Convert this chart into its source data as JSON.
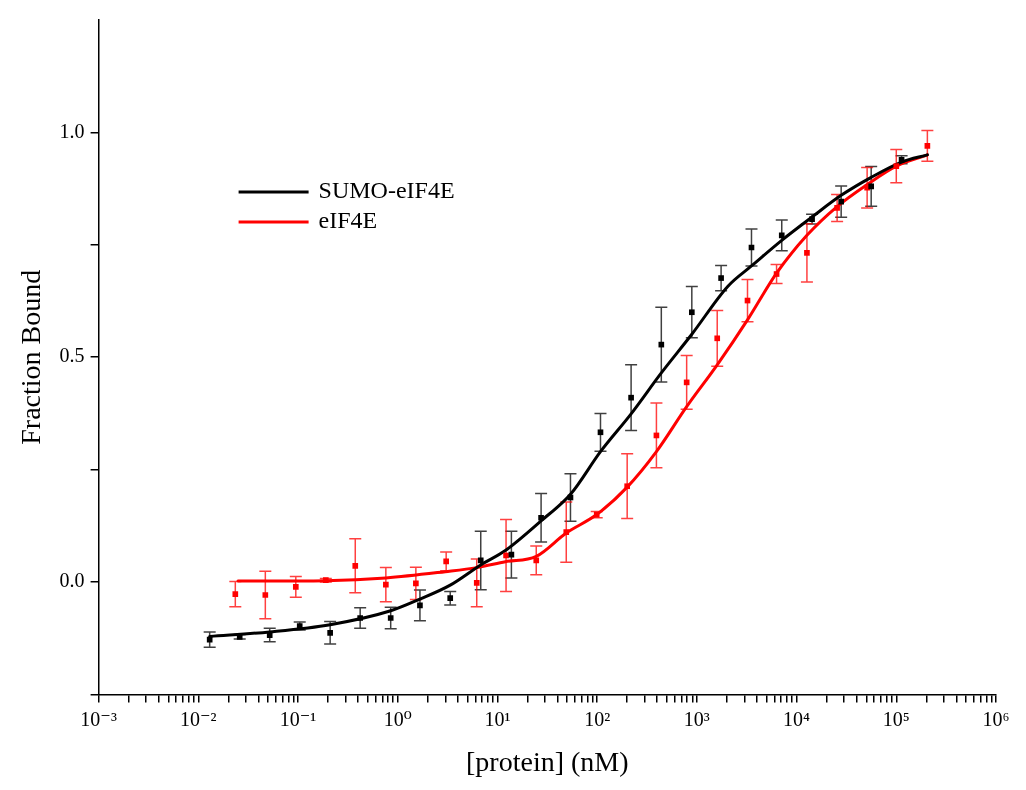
{
  "chart_data": {
    "type": "scatter",
    "xlabel": "[protein] (nM)",
    "ylabel": "Fraction Bound",
    "log": "x",
    "legend": "top left",
    "xlim": [
      0.001,
      1000000
    ],
    "ylim": [
      -0.25,
      1.25
    ],
    "xticks": [
      {
        "value": 0.001,
        "label": "10⁻³"
      },
      {
        "value": 0.002,
        "label": null
      },
      {
        "value": 0.003,
        "label": null
      },
      {
        "value": 0.004,
        "label": null
      },
      {
        "value": 0.005,
        "label": null
      },
      {
        "value": 0.006,
        "label": null
      },
      {
        "value": 0.007,
        "label": null
      },
      {
        "value": 0.008,
        "label": null
      },
      {
        "value": 0.009,
        "label": null
      },
      {
        "value": 0.01,
        "label": "10⁻²"
      },
      {
        "value": 0.02,
        "label": null
      },
      {
        "value": 0.03,
        "label": null
      },
      {
        "value": 0.04,
        "label": null
      },
      {
        "value": 0.05,
        "label": null
      },
      {
        "value": 0.06,
        "label": null
      },
      {
        "value": 0.07,
        "label": null
      },
      {
        "value": 0.08,
        "label": null
      },
      {
        "value": 0.09,
        "label": null
      },
      {
        "value": 0.1,
        "label": "10⁻¹"
      },
      {
        "value": 0.2,
        "label": null
      },
      {
        "value": 0.3,
        "label": null
      },
      {
        "value": 0.4,
        "label": null
      },
      {
        "value": 0.5,
        "label": null
      },
      {
        "value": 0.6,
        "label": null
      },
      {
        "value": 0.7,
        "label": null
      },
      {
        "value": 0.8,
        "label": null
      },
      {
        "value": 0.9,
        "label": null
      },
      {
        "value": 1,
        "label": "10⁰"
      },
      {
        "value": 2,
        "label": null
      },
      {
        "value": 3,
        "label": null
      },
      {
        "value": 4,
        "label": null
      },
      {
        "value": 5,
        "label": null
      },
      {
        "value": 6,
        "label": null
      },
      {
        "value": 7,
        "label": null
      },
      {
        "value": 8,
        "label": null
      },
      {
        "value": 9,
        "label": null
      },
      {
        "value": 10,
        "label": "10¹"
      },
      {
        "value": 20,
        "label": null
      },
      {
        "value": 30,
        "label": null
      },
      {
        "value": 40,
        "label": null
      },
      {
        "value": 50,
        "label": null
      },
      {
        "value": 60,
        "label": null
      },
      {
        "value": 70,
        "label": null
      },
      {
        "value": 80,
        "label": null
      },
      {
        "value": 90,
        "label": null
      },
      {
        "value": 100,
        "label": "10²"
      },
      {
        "value": 200,
        "label": null
      },
      {
        "value": 300,
        "label": null
      },
      {
        "value": 400,
        "label": null
      },
      {
        "value": 500,
        "label": null
      },
      {
        "value": 600,
        "label": null
      },
      {
        "value": 700,
        "label": null
      },
      {
        "value": 800,
        "label": null
      },
      {
        "value": 900,
        "label": null
      },
      {
        "value": 1000,
        "label": "10³"
      },
      {
        "value": 2000,
        "label": null
      },
      {
        "value": 3000,
        "label": null
      },
      {
        "value": 4000,
        "label": null
      },
      {
        "value": 5000,
        "label": null
      },
      {
        "value": 6000,
        "label": null
      },
      {
        "value": 7000,
        "label": null
      },
      {
        "value": 8000,
        "label": null
      },
      {
        "value": 9000,
        "label": null
      },
      {
        "value": 10000,
        "label": "10⁴"
      },
      {
        "value": 20000,
        "label": null
      },
      {
        "value": 30000,
        "label": null
      },
      {
        "value": 40000,
        "label": null
      },
      {
        "value": 50000,
        "label": null
      },
      {
        "value": 60000,
        "label": null
      },
      {
        "value": 70000,
        "label": null
      },
      {
        "value": 80000,
        "label": null
      },
      {
        "value": 90000,
        "label": null
      },
      {
        "value": 100000,
        "label": "10⁵"
      },
      {
        "value": 200000,
        "label": null
      },
      {
        "value": 300000,
        "label": null
      },
      {
        "value": 400000,
        "label": null
      },
      {
        "value": 500000,
        "label": null
      },
      {
        "value": 600000,
        "label": null
      },
      {
        "value": 700000,
        "label": null
      },
      {
        "value": 800000,
        "label": null
      },
      {
        "value": 900000,
        "label": null
      },
      {
        "value": 1000000,
        "label": "10⁶"
      }
    ],
    "yticks": [
      {
        "value": -0.25,
        "label": null
      },
      {
        "value": 0,
        "label": "0.0"
      },
      {
        "value": 0.25,
        "label": null
      },
      {
        "value": 0.5,
        "label": "0.5"
      },
      {
        "value": 0.75,
        "label": null
      },
      {
        "value": 1,
        "label": "1.0"
      }
    ],
    "series": [
      {
        "type": "line",
        "name": "SUMO-eIF4E",
        "color": "#000000",
        "marker": "none",
        "x": [
          0.013,
          0.052,
          0.21,
          0.85,
          1.67,
          3.36,
          6.8,
          12,
          27.4,
          54,
          108,
          219,
          440,
          890,
          2050,
          3530,
          7100,
          14300,
          28000,
          56000,
          113000,
          205000
        ],
        "values": [
          -0.121,
          -0.111,
          -0.095,
          -0.064,
          -0.038,
          -0.007,
          0.038,
          0.07,
          0.136,
          0.195,
          0.29,
          0.374,
          0.465,
          0.551,
          0.658,
          0.703,
          0.76,
          0.812,
          0.86,
          0.9,
          0.934,
          0.95
        ]
      },
      {
        "type": "line",
        "name": "eIF4E",
        "color": "#ff0000",
        "marker": "none",
        "x": [
          0.025,
          0.19,
          0.76,
          3,
          6.2,
          12,
          24.5,
          49,
          99,
          200,
          393,
          790,
          1600,
          3220,
          6300,
          12700,
          25500,
          51000,
          100000,
          205000
        ],
        "values": [
          0.002,
          0.003,
          0.009,
          0.023,
          0.032,
          0.045,
          0.057,
          0.109,
          0.15,
          0.211,
          0.29,
          0.39,
          0.483,
          0.583,
          0.687,
          0.771,
          0.835,
          0.884,
          0.925,
          0.95
        ]
      },
      {
        "type": "scatter",
        "color": "#000000",
        "marker": "square",
        "x": [
          0.013,
          0.026,
          0.052,
          0.104,
          0.21,
          0.42,
          0.85,
          1.67,
          3.36,
          6.8,
          13.8,
          27.4,
          54,
          108,
          219,
          440,
          890,
          1750,
          3530,
          7100,
          14300,
          28000,
          56000,
          113000
        ],
        "values": [
          -0.128,
          -0.122,
          -0.118,
          -0.098,
          -0.113,
          -0.08,
          -0.08,
          -0.052,
          -0.036,
          0.048,
          0.061,
          0.143,
          0.188,
          0.333,
          0.41,
          0.528,
          0.6,
          0.676,
          0.744,
          0.771,
          0.807,
          0.846,
          0.88,
          0.939
        ],
        "errors": [
          0.017,
          0.005,
          0.015,
          0.009,
          0.025,
          0.023,
          0.024,
          0.034,
          0.015,
          0.065,
          0.052,
          0.054,
          0.053,
          0.042,
          0.073,
          0.083,
          0.057,
          0.028,
          0.041,
          0.034,
          0.011,
          0.035,
          0.044,
          0.009
        ]
      },
      {
        "type": "scatter",
        "color": "#ff0000",
        "marker": "square",
        "x": [
          0.0235,
          0.047,
          0.095,
          0.19,
          0.375,
          0.76,
          1.52,
          3.06,
          6.2,
          12.2,
          24.5,
          49,
          99,
          200,
          393,
          790,
          1600,
          3220,
          6300,
          12700,
          25500,
          51000,
          100000,
          205000
        ],
        "values": [
          -0.027,
          -0.029,
          -0.011,
          0.004,
          0.036,
          -0.006,
          -0.003,
          0.046,
          -0.002,
          0.059,
          0.048,
          0.111,
          0.15,
          0.213,
          0.326,
          0.444,
          0.542,
          0.626,
          0.685,
          0.732,
          0.832,
          0.877,
          0.925,
          0.97
        ],
        "errors": [
          0.028,
          0.053,
          0.023,
          0.004,
          0.06,
          0.038,
          0.036,
          0.021,
          0.053,
          0.08,
          0.032,
          0.067,
          0.007,
          0.072,
          0.072,
          0.06,
          0.062,
          0.047,
          0.021,
          0.065,
          0.03,
          0.045,
          0.037,
          0.034
        ]
      }
    ]
  }
}
